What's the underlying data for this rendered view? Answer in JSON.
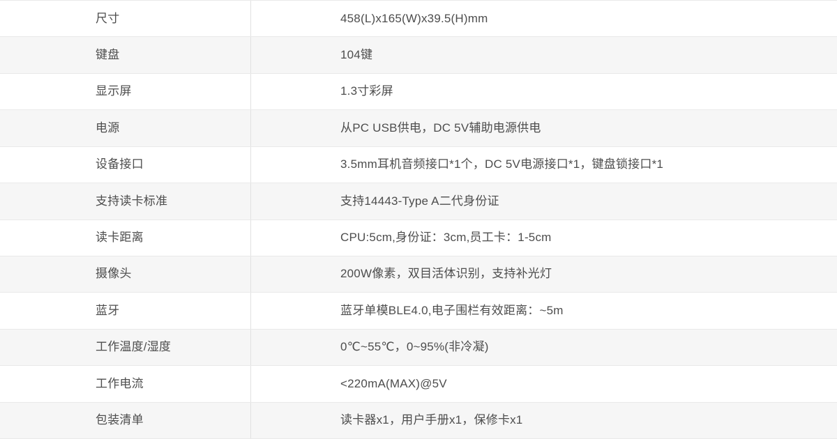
{
  "colors": {
    "row_alt_bg": "#f6f6f6",
    "row_border": "#e9e9e9",
    "column_divider": "#e1e1e1",
    "text": "#4d4d4d"
  },
  "table": {
    "rows": [
      {
        "label": "尺寸",
        "value": "458(L)x165(W)x39.5(H)mm"
      },
      {
        "label": "键盘",
        "value": "104键"
      },
      {
        "label": "显示屏",
        "value": "1.3寸彩屏"
      },
      {
        "label": "电源",
        "value": "从PC USB供电，DC 5V辅助电源供电"
      },
      {
        "label": "设备接口",
        "value": "3.5mm耳机音频接口*1个，DC 5V电源接口*1，键盘锁接口*1"
      },
      {
        "label": "支持读卡标准",
        "value": "支持14443-Type A二代身份证"
      },
      {
        "label": "读卡距离",
        "value": "CPU:5cm,身份证：3cm,员工卡：1-5cm"
      },
      {
        "label": "摄像头",
        "value": "200W像素，双目活体识别，支持补光灯"
      },
      {
        "label": "蓝牙",
        "value": "蓝牙单模BLE4.0,电子围栏有效距离：~5m"
      },
      {
        "label": "工作温度/湿度",
        "value": "0℃~55℃，0~95%(非冷凝)"
      },
      {
        "label": "工作电流",
        "value": "<220mA(MAX)@5V"
      },
      {
        "label": "包装清单",
        "value": "读卡器x1，用户手册x1，保修卡x1"
      }
    ]
  }
}
